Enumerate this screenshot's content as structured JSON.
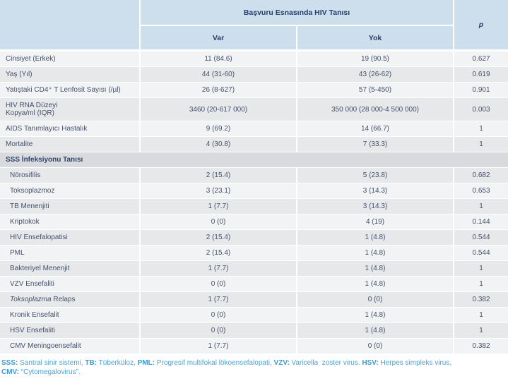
{
  "table": {
    "header": {
      "group_title": "Başvuru Esnasında HIV Tanısı",
      "col_var": "Var",
      "col_yok": "Yok",
      "col_p": "p"
    },
    "rows": [
      {
        "type": "data",
        "shade": "light",
        "label": "Cinsiyet (Erkek)",
        "var": "11 (84.6)",
        "yok": "19 (90.5)",
        "p": "0.627"
      },
      {
        "type": "data",
        "shade": "dark",
        "label": "Yaş (Yıl)",
        "var": "44 (31-60)",
        "yok": "43 (26-62)",
        "p": "0.619"
      },
      {
        "type": "data",
        "shade": "light",
        "label": "Yatıştaki CD4⁺ T Lenfosit Sayısı (/µl)",
        "var": "26 (8-627)",
        "yok": "57 (5-450)",
        "p": "0.901"
      },
      {
        "type": "data",
        "shade": "dark",
        "tall": true,
        "label": "HIV RNA Düzeyi\nKopya/ml (IQR)",
        "var": "3460 (20-617 000)",
        "yok": "350 000 (28 000-4 500 000)",
        "p": "0.003"
      },
      {
        "type": "data",
        "shade": "light",
        "label": "AIDS Tanımlayıcı Hastalık",
        "var": "9 (69.2)",
        "yok": "14 (66.7)",
        "p": "1"
      },
      {
        "type": "data",
        "shade": "dark",
        "label": "Mortalite",
        "var": "4 (30.8)",
        "yok": "7 (33.3)",
        "p": "1"
      },
      {
        "type": "section",
        "label": "SSS İnfeksiyonu Tanısı"
      },
      {
        "type": "data",
        "shade": "dark",
        "indent": true,
        "label": "Nörosifilis",
        "var": "2 (15.4)",
        "yok": "5 (23.8)",
        "p": "0.682"
      },
      {
        "type": "data",
        "shade": "light",
        "indent": true,
        "label": "Toksoplazmoz",
        "var": "3 (23.1)",
        "yok": "3 (14.3)",
        "p": "0.653"
      },
      {
        "type": "data",
        "shade": "dark",
        "indent": true,
        "label": "TB Menenjiti",
        "var": "1 (7.7)",
        "yok": "3 (14.3)",
        "p": "1"
      },
      {
        "type": "data",
        "shade": "light",
        "indent": true,
        "label": "Kriptokok",
        "var": "0 (0)",
        "yok": "4 (19)",
        "p": "0.144"
      },
      {
        "type": "data",
        "shade": "dark",
        "indent": true,
        "label": "HIV Ensefalopatisi",
        "var": "2 (15.4)",
        "yok": "1 (4.8)",
        "p": "0.544"
      },
      {
        "type": "data",
        "shade": "light",
        "indent": true,
        "label": "PML",
        "var": "2 (15.4)",
        "yok": "1 (4.8)",
        "p": "0.544"
      },
      {
        "type": "data",
        "shade": "dark",
        "indent": true,
        "label": "Bakteriyel Menenjit",
        "var": "1 (7.7)",
        "yok": "1 (4.8)",
        "p": "1"
      },
      {
        "type": "data",
        "shade": "light",
        "indent": true,
        "label": "VZV Ensefaliti",
        "var": "0 (0)",
        "yok": "1 (4.8)",
        "p": "1"
      },
      {
        "type": "data",
        "shade": "dark",
        "indent": true,
        "label_em": "Toksoplazma",
        "label": " Relaps",
        "var": "1 (7.7)",
        "yok": "0 (0)",
        "p": "0.382"
      },
      {
        "type": "data",
        "shade": "light",
        "indent": true,
        "label": "Kronik Ensefalit",
        "var": "0 (0)",
        "yok": "1 (4.8)",
        "p": "1"
      },
      {
        "type": "data",
        "shade": "dark",
        "indent": true,
        "label": "HSV Ensefaliti",
        "var": "0 (0)",
        "yok": "1 (4.8)",
        "p": "1"
      },
      {
        "type": "data",
        "shade": "light",
        "indent": true,
        "label": "CMV Meningoensefalit",
        "var": "1 (7.7)",
        "yok": "0 (0)",
        "p": "0.382"
      }
    ]
  },
  "footnote": {
    "segments": [
      {
        "bold": "SSS:",
        "text": " Santral sinir sistemi, "
      },
      {
        "bold": "TB:",
        "text": " Tüberküloz, "
      },
      {
        "bold": "PML:",
        "text": " Progresif multifokal lökoensefalopati, "
      },
      {
        "bold": "VZV:",
        "text": " Varicella  zoster virus. "
      },
      {
        "bold": "HSV:",
        "text": " Herpes simpleks virus,\n"
      },
      {
        "bold": "CMV:",
        "text": " “Cytomegalovirus”."
      }
    ]
  },
  "colors": {
    "header_bg": "#cddfec",
    "row_light": "#f2f3f4",
    "row_dark": "#e7e8ea",
    "section_bg": "#d8dade",
    "text_navy": "#24406b",
    "body_text": "#44516c",
    "footnote_blue": "#4aa2d7"
  }
}
